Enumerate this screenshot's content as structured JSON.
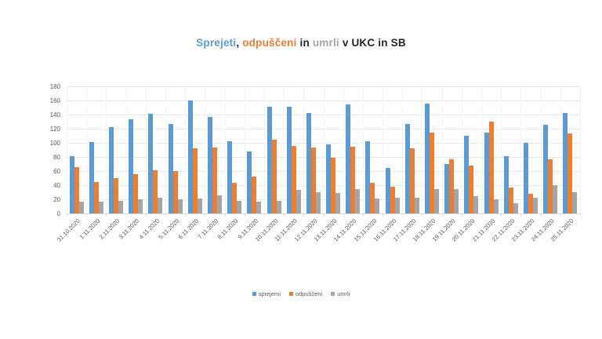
{
  "title": {
    "full_text": "Sprejeti, odpuščeni in umrli v UKC in SB",
    "parts": [
      {
        "text": "Sprejeti",
        "color": "#5B9BD5"
      },
      {
        "text": ", ",
        "color": "#262626"
      },
      {
        "text": "odpuščeni",
        "color": "#ED7D31"
      },
      {
        "text": " in ",
        "color": "#262626"
      },
      {
        "text": "umrli",
        "color": "#A5A5A5"
      },
      {
        "text": " v UKC in SB",
        "color": "#262626"
      }
    ]
  },
  "chart_data": {
    "type": "bar",
    "title": "Sprejeti, odpuščeni in umrli v UKC in SB",
    "categories": [
      "31.10.2020",
      "1.11.2020",
      "2.11.2020",
      "3.11.2020",
      "4.11.2020",
      "5.11.2020",
      "6.11.2020",
      "7.11.2020",
      "8.11.2020",
      "9.11.2020",
      "10.11.2020",
      "11.11.2020",
      "12.11.2020",
      "13.11.2020",
      "14.11.2020",
      "15.11.2020",
      "16.11.2020",
      "17.11.2020",
      "18.11.2020",
      "19.11.2020",
      "20.11.2020",
      "21.11.2020",
      "22.11.2020",
      "23.11.2020",
      "24.11.2020",
      "25.11.2020"
    ],
    "series": [
      {
        "name": "sprejemi",
        "color": "#5B9BD5",
        "values": [
          81,
          101,
          122,
          133,
          141,
          127,
          160,
          137,
          102,
          88,
          151,
          151,
          142,
          98,
          155,
          102,
          64,
          127,
          156,
          70,
          110,
          114,
          81,
          100,
          126,
          142
        ]
      },
      {
        "name": "odpuščeni",
        "color": "#ED7D31",
        "values": [
          66,
          45,
          50,
          56,
          61,
          60,
          92,
          93,
          43,
          52,
          104,
          96,
          93,
          79,
          94,
          43,
          38,
          92,
          115,
          77,
          68,
          130,
          37,
          28,
          77,
          113
        ]
      },
      {
        "name": "umrli",
        "color": "#A5A5A5",
        "values": [
          17,
          17,
          18,
          20,
          22,
          20,
          21,
          26,
          18,
          17,
          18,
          33,
          30,
          29,
          34,
          21,
          22,
          22,
          34,
          35,
          25,
          20,
          15,
          22,
          40,
          30
        ]
      }
    ],
    "ylim": [
      0,
      180
    ],
    "ytick_step": 20,
    "yticks": [
      0,
      20,
      40,
      60,
      80,
      100,
      120,
      140,
      160,
      180
    ],
    "grid": true,
    "legend_position": "bottom",
    "xlabel": "",
    "ylabel": ""
  }
}
